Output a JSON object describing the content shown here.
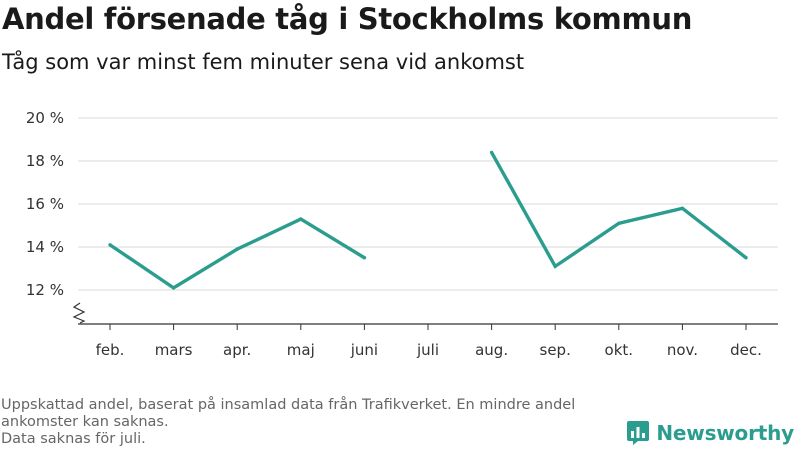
{
  "header": {
    "title": "Andel försenade tåg i Stockholms kommun",
    "subtitle": "Tåg som var minst fem minuter sena vid ankomst"
  },
  "chart_data": {
    "type": "line",
    "categories": [
      "feb.",
      "mars",
      "apr.",
      "maj",
      "juni",
      "juli",
      "aug.",
      "sep.",
      "okt.",
      "nov.",
      "dec."
    ],
    "series": [
      {
        "values": [
          14.1,
          12.1,
          13.9,
          15.3,
          13.5,
          null,
          18.4,
          13.1,
          15.1,
          15.8,
          13.5
        ]
      }
    ],
    "ylim": [
      11,
      20
    ],
    "yticks": [
      12,
      14,
      16,
      18,
      20
    ],
    "ytick_labels": [
      "12 %",
      "14 %",
      "16 %",
      "18 %",
      "20 %"
    ],
    "axis_break": true,
    "grid": true,
    "line_color": "#2a9d8f",
    "title": "Andel försenade tåg i Stockholms kommun",
    "xlabel": "",
    "ylabel": ""
  },
  "footnote": {
    "line1": "Uppskattad andel, baserat på insamlad data från Trafikverket. En mindre andel ankomster kan saknas.",
    "line2": "Data saknas för juli."
  },
  "brand": {
    "name": "Newsworthy",
    "icon": "newsworthy-logo-icon",
    "color": "#2a9d8f"
  }
}
